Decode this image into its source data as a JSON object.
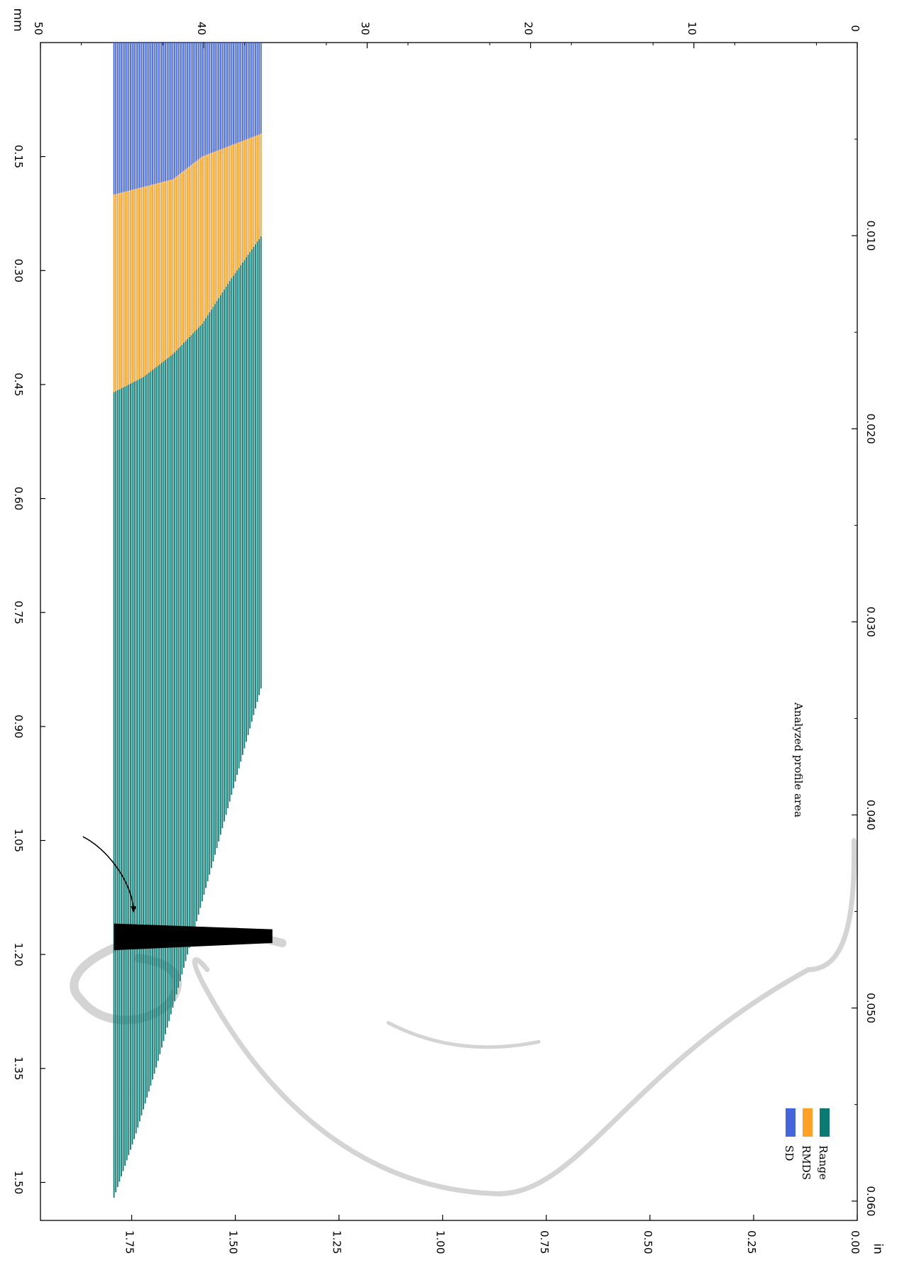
{
  "chart_data": {
    "type": "bar",
    "orientation": "rotated-90",
    "grid": false,
    "legend_position": "bottom-right",
    "colors": {
      "Range": "#0a7a72",
      "RMDS": "#ffa126",
      "SD": "#4466dd",
      "profile_shape": "#d4d4d4",
      "analyzed_area": "#000000"
    },
    "axes": {
      "mm_axis": {
        "label": "mm",
        "range": [
          0,
          1.55
        ],
        "ticks": [
          "0.15",
          "0.30",
          "0.45",
          "0.60",
          "0.75",
          "0.90",
          "1.05",
          "1.20",
          "1.35",
          "1.50"
        ]
      },
      "mm_value_axis": {
        "range": [
          0,
          50
        ],
        "ticks": [
          "0",
          "10",
          "20",
          "30",
          "40",
          "50"
        ]
      },
      "in_axis": {
        "label": "in",
        "range": [
          0,
          0.061
        ],
        "ticks": [
          "0.010",
          "0.020",
          "0.030",
          "0.040",
          "0.050",
          "0.060"
        ]
      },
      "in_value_axis": {
        "range": [
          0,
          1.97
        ],
        "ticks": [
          "0.00",
          "0.25",
          "0.50",
          "0.75",
          "1.00",
          "1.25",
          "1.50",
          "1.75"
        ]
      }
    },
    "legend": [
      {
        "name": "Range"
      },
      {
        "name": "RMDS"
      },
      {
        "name": "SD"
      }
    ],
    "annotation": {
      "text": "Analyzed profile area"
    },
    "series": [
      {
        "name": "SD",
        "x_start": 0.0,
        "x_end": [
          0.12,
          0.135,
          0.15,
          0.18,
          0.19,
          0.2
        ]
      },
      {
        "name": "RMDS",
        "x_start": 0.0,
        "x_end": [
          0.255,
          0.31,
          0.37,
          0.41,
          0.44,
          0.46
        ]
      },
      {
        "name": "Range",
        "x_start": 0.0,
        "x_end": [
          0.85,
          0.95,
          1.05,
          1.15,
          1.25,
          1.35,
          1.44,
          1.52
        ]
      }
    ],
    "bars": {
      "count": 81,
      "x_min": 0.0,
      "x_max_start": 0.85,
      "x_max_end": 1.52,
      "value_start": 36.5,
      "value_end": 45.5
    }
  }
}
